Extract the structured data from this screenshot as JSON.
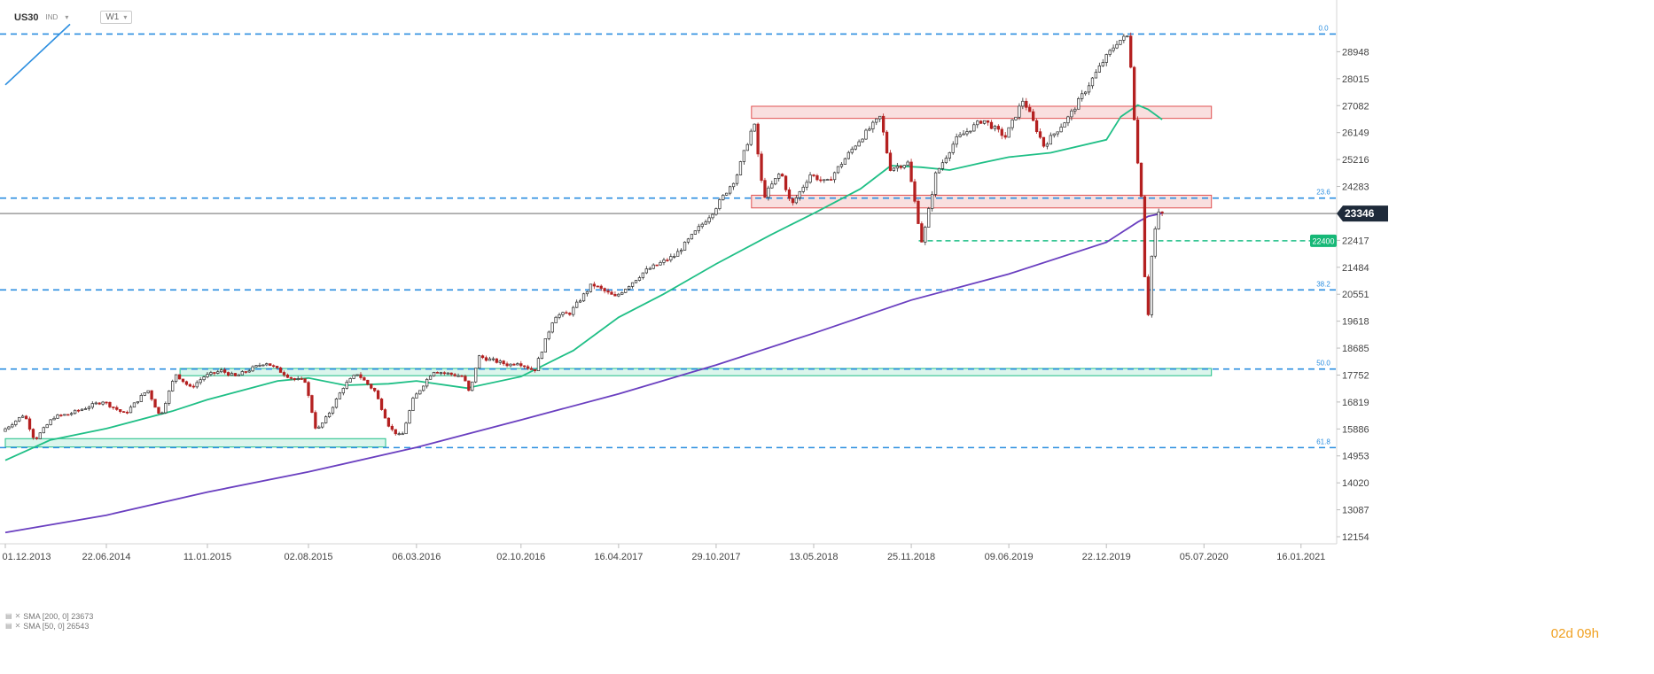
{
  "header": {
    "symbol": "US30",
    "symbol_type": "IND",
    "timeframe": "W1",
    "dropdown_icon": "chevron-down-icon"
  },
  "indicators": [
    {
      "label": "SMA [200, 0] 23673",
      "color": "#6a3fc0"
    },
    {
      "label": "SMA [50, 0] 26543",
      "color": "#1fbf86"
    }
  ],
  "countdown": "02d 09h",
  "chart_data": {
    "type": "candlestick",
    "title": "",
    "xlabel": "",
    "ylabel": "",
    "ylim": [
      12154,
      29881
    ],
    "x_tick_labels": [
      "01.12.2013",
      "22.06.2014",
      "11.01.2015",
      "02.08.2015",
      "06.03.2016",
      "02.10.2016",
      "16.04.2017",
      "29.10.2017",
      "13.05.2018",
      "25.11.2018",
      "09.06.2019",
      "22.12.2019",
      "05.07.2020",
      "16.01.2021"
    ],
    "y_tick_values": [
      28948,
      28015,
      27082,
      26149,
      25216,
      24283,
      23350,
      22417,
      21484,
      20551,
      19618,
      18685,
      17752,
      16819,
      15886,
      14953,
      14020,
      13087,
      12154
    ],
    "y_tick_labels": [
      "28948",
      "28015",
      "27082",
      "26149",
      "25216",
      "24283",
      "",
      "22417",
      "21484",
      "20551",
      "19618",
      "18685",
      "17752",
      "16819",
      "15886",
      "14953",
      "14020",
      "13087",
      "12154"
    ],
    "current_price": {
      "value": 23346,
      "label": "23346",
      "color": "#1e2a3a"
    },
    "level_marker": {
      "value": 22400,
      "label": "22400",
      "color": "#16b877"
    },
    "fibonacci": [
      {
        "label": "0.0",
        "value": 29560
      },
      {
        "label": "23.6",
        "value": 23880
      },
      {
        "label": "38.2",
        "value": 20700
      },
      {
        "label": "50.0",
        "value": 17960
      },
      {
        "label": "61.8",
        "value": 15240
      }
    ],
    "zones": [
      {
        "kind": "resistance",
        "x_from": "2018-01-08",
        "x_to": "2020-07-20",
        "y_from": 26640,
        "y_to": 27060,
        "color": "#e05050"
      },
      {
        "kind": "resistance",
        "x_from": "2018-01-08",
        "x_to": "2020-07-20",
        "y_from": 23540,
        "y_to": 23980,
        "color": "#e05050"
      },
      {
        "kind": "support",
        "x_from": "2014-11-17",
        "x_to": "2020-07-20",
        "y_from": 17730,
        "y_to": 17980,
        "color": "#1fbf86"
      },
      {
        "kind": "support",
        "x_from": "2013-12-01",
        "x_to": "2016-01-04",
        "y_from": 15260,
        "y_to": 15550,
        "color": "#1fbf86"
      }
    ],
    "trendline": [
      {
        "date": "2013-12-01",
        "value": 27800
      },
      {
        "date": "2014-04-10",
        "value": 29900
      }
    ],
    "level_line": {
      "x_from": "2018-12-10",
      "x_to": "2020-10-01",
      "value": 22400
    },
    "colors": {
      "up": "#2a2a2a",
      "down": "#b42020",
      "fib": "#2b8ee0",
      "sma50": "#1fbf86",
      "sma200": "#6a3fc0"
    },
    "series": [
      {
        "name": "SMA [200, 0] 23673",
        "role": "sma200",
        "points": [
          [
            "2013-12-01",
            12300
          ],
          [
            "2014-06-22",
            12900
          ],
          [
            "2015-01-11",
            13700
          ],
          [
            "2015-08-02",
            14400
          ],
          [
            "2016-03-06",
            15250
          ],
          [
            "2016-10-02",
            16200
          ],
          [
            "2017-04-16",
            17100
          ],
          [
            "2017-10-29",
            18100
          ],
          [
            "2018-05-13",
            19200
          ],
          [
            "2018-11-25",
            20350
          ],
          [
            "2019-06-09",
            21250
          ],
          [
            "2019-12-22",
            22350
          ],
          [
            "2020-02-23",
            23050
          ],
          [
            "2020-03-15",
            23250
          ],
          [
            "2020-04-12",
            23350
          ]
        ]
      },
      {
        "name": "SMA [50, 0] 26543",
        "role": "sma50",
        "points": [
          [
            "2013-12-01",
            14800
          ],
          [
            "2014-03-01",
            15500
          ],
          [
            "2014-06-22",
            15900
          ],
          [
            "2014-11-01",
            16500
          ],
          [
            "2015-01-11",
            16900
          ],
          [
            "2015-06-01",
            17550
          ],
          [
            "2015-08-02",
            17650
          ],
          [
            "2015-10-15",
            17400
          ],
          [
            "2016-01-10",
            17450
          ],
          [
            "2016-03-06",
            17550
          ],
          [
            "2016-06-15",
            17300
          ],
          [
            "2016-10-02",
            17700
          ],
          [
            "2017-01-15",
            18600
          ],
          [
            "2017-04-16",
            19750
          ],
          [
            "2017-07-15",
            20550
          ],
          [
            "2017-10-29",
            21600
          ],
          [
            "2018-02-15",
            22600
          ],
          [
            "2018-05-13",
            23350
          ],
          [
            "2018-08-15",
            24200
          ],
          [
            "2018-10-15",
            25000
          ],
          [
            "2018-12-15",
            24950
          ],
          [
            "2019-02-10",
            24850
          ],
          [
            "2019-04-15",
            25100
          ],
          [
            "2019-06-09",
            25300
          ],
          [
            "2019-09-01",
            25450
          ],
          [
            "2019-12-22",
            25900
          ],
          [
            "2020-01-20",
            26700
          ],
          [
            "2020-02-23",
            27100
          ],
          [
            "2020-03-15",
            26950
          ],
          [
            "2020-04-12",
            26600
          ]
        ]
      },
      {
        "name": "US30",
        "role": "price",
        "points": [
          [
            "2013-12-01",
            15800
          ],
          [
            "2014-01-15",
            16400
          ],
          [
            "2014-02-05",
            15500
          ],
          [
            "2014-03-15",
            16300
          ],
          [
            "2014-04-15",
            16400
          ],
          [
            "2014-06-22",
            16850
          ],
          [
            "2014-08-05",
            16400
          ],
          [
            "2014-09-20",
            17250
          ],
          [
            "2014-10-15",
            16300
          ],
          [
            "2014-11-15",
            17800
          ],
          [
            "2014-12-15",
            17300
          ],
          [
            "2015-01-11",
            17700
          ],
          [
            "2015-02-15",
            17900
          ],
          [
            "2015-03-15",
            17700
          ],
          [
            "2015-05-15",
            18200
          ],
          [
            "2015-07-10",
            17600
          ],
          [
            "2015-08-02",
            17550
          ],
          [
            "2015-08-25",
            15800
          ],
          [
            "2015-09-15",
            16300
          ],
          [
            "2015-10-20",
            17400
          ],
          [
            "2015-11-15",
            17800
          ],
          [
            "2015-12-20",
            17200
          ],
          [
            "2016-01-20",
            15900
          ],
          [
            "2016-02-12",
            15600
          ],
          [
            "2016-03-06",
            16900
          ],
          [
            "2016-04-15",
            17900
          ],
          [
            "2016-06-15",
            17700
          ],
          [
            "2016-06-28",
            17100
          ],
          [
            "2016-07-15",
            18400
          ],
          [
            "2016-09-15",
            18100
          ],
          [
            "2016-10-02",
            18200
          ],
          [
            "2016-11-05",
            17900
          ],
          [
            "2016-12-15",
            19800
          ],
          [
            "2017-01-15",
            19900
          ],
          [
            "2017-03-01",
            20900
          ],
          [
            "2017-04-16",
            20450
          ],
          [
            "2017-06-15",
            21350
          ],
          [
            "2017-08-15",
            21900
          ],
          [
            "2017-10-29",
            23400
          ],
          [
            "2017-12-15",
            24600
          ],
          [
            "2018-01-20",
            26500
          ],
          [
            "2018-02-08",
            23900
          ],
          [
            "2018-03-15",
            24800
          ],
          [
            "2018-04-05",
            23600
          ],
          [
            "2018-05-13",
            24700
          ],
          [
            "2018-06-15",
            24400
          ],
          [
            "2018-08-15",
            25800
          ],
          [
            "2018-10-01",
            26700
          ],
          [
            "2018-10-20",
            24900
          ],
          [
            "2018-11-25",
            25100
          ],
          [
            "2018-12-24",
            22300
          ],
          [
            "2019-01-20",
            24700
          ],
          [
            "2019-03-01",
            25900
          ],
          [
            "2019-04-25",
            26600
          ],
          [
            "2019-06-09",
            26000
          ],
          [
            "2019-07-15",
            27300
          ],
          [
            "2019-08-25",
            25700
          ],
          [
            "2019-10-15",
            26700
          ],
          [
            "2019-12-22",
            28600
          ],
          [
            "2020-01-20",
            29300
          ],
          [
            "2020-02-12",
            29500
          ],
          [
            "2020-02-28",
            25400
          ],
          [
            "2020-03-08",
            24000
          ],
          [
            "2020-03-20",
            19200
          ],
          [
            "2020-03-27",
            21600
          ],
          [
            "2020-04-05",
            22800
          ],
          [
            "2020-04-12",
            23346
          ]
        ]
      }
    ]
  }
}
